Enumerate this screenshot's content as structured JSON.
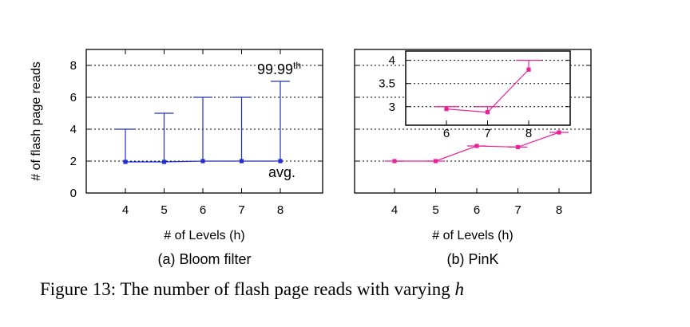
{
  "figure": {
    "caption_prefix": "Figure 13: The number of flash page reads with varying ",
    "caption_var": "h"
  },
  "chart_data": [
    {
      "type": "line",
      "id": "a",
      "subtitle": "(a) Bloom filter",
      "xlabel": "# of Levels (h)",
      "ylabel": "# of flash page reads",
      "categories": [
        4,
        5,
        6,
        7,
        8
      ],
      "ylim": [
        0,
        9
      ],
      "yticks": [
        0,
        2,
        4,
        6,
        8
      ],
      "grid": true,
      "color": "#1f2fd6",
      "series": [
        {
          "name": "avg.",
          "values": [
            1.95,
            1.95,
            2.0,
            2.0,
            2.0
          ]
        },
        {
          "name": "99.99th",
          "values": [
            4,
            5,
            6,
            6,
            7
          ]
        }
      ],
      "annotations": {
        "p9999": "99.99",
        "p9999_sup": "th",
        "avg": "avg."
      }
    },
    {
      "type": "line",
      "id": "b",
      "subtitle": "(b) PinK",
      "xlabel": "# of Levels (h)",
      "categories": [
        4,
        5,
        6,
        7,
        8
      ],
      "ylim": [
        0,
        9
      ],
      "grid": true,
      "color": "#e8239a",
      "series": [
        {
          "name": "avg",
          "values": [
            2.0,
            2.0,
            2.95,
            2.88,
            3.8
          ]
        }
      ],
      "inset": {
        "categories": [
          6,
          7,
          8
        ],
        "ylim": [
          2.6,
          4.2
        ],
        "yticks": [
          3,
          3.5,
          4
        ],
        "ytick_labels": [
          "3",
          "3.5",
          "4"
        ],
        "avg": [
          2.95,
          2.88,
          3.8
        ],
        "p9999": [
          3.0,
          3.0,
          4.0
        ]
      }
    }
  ]
}
